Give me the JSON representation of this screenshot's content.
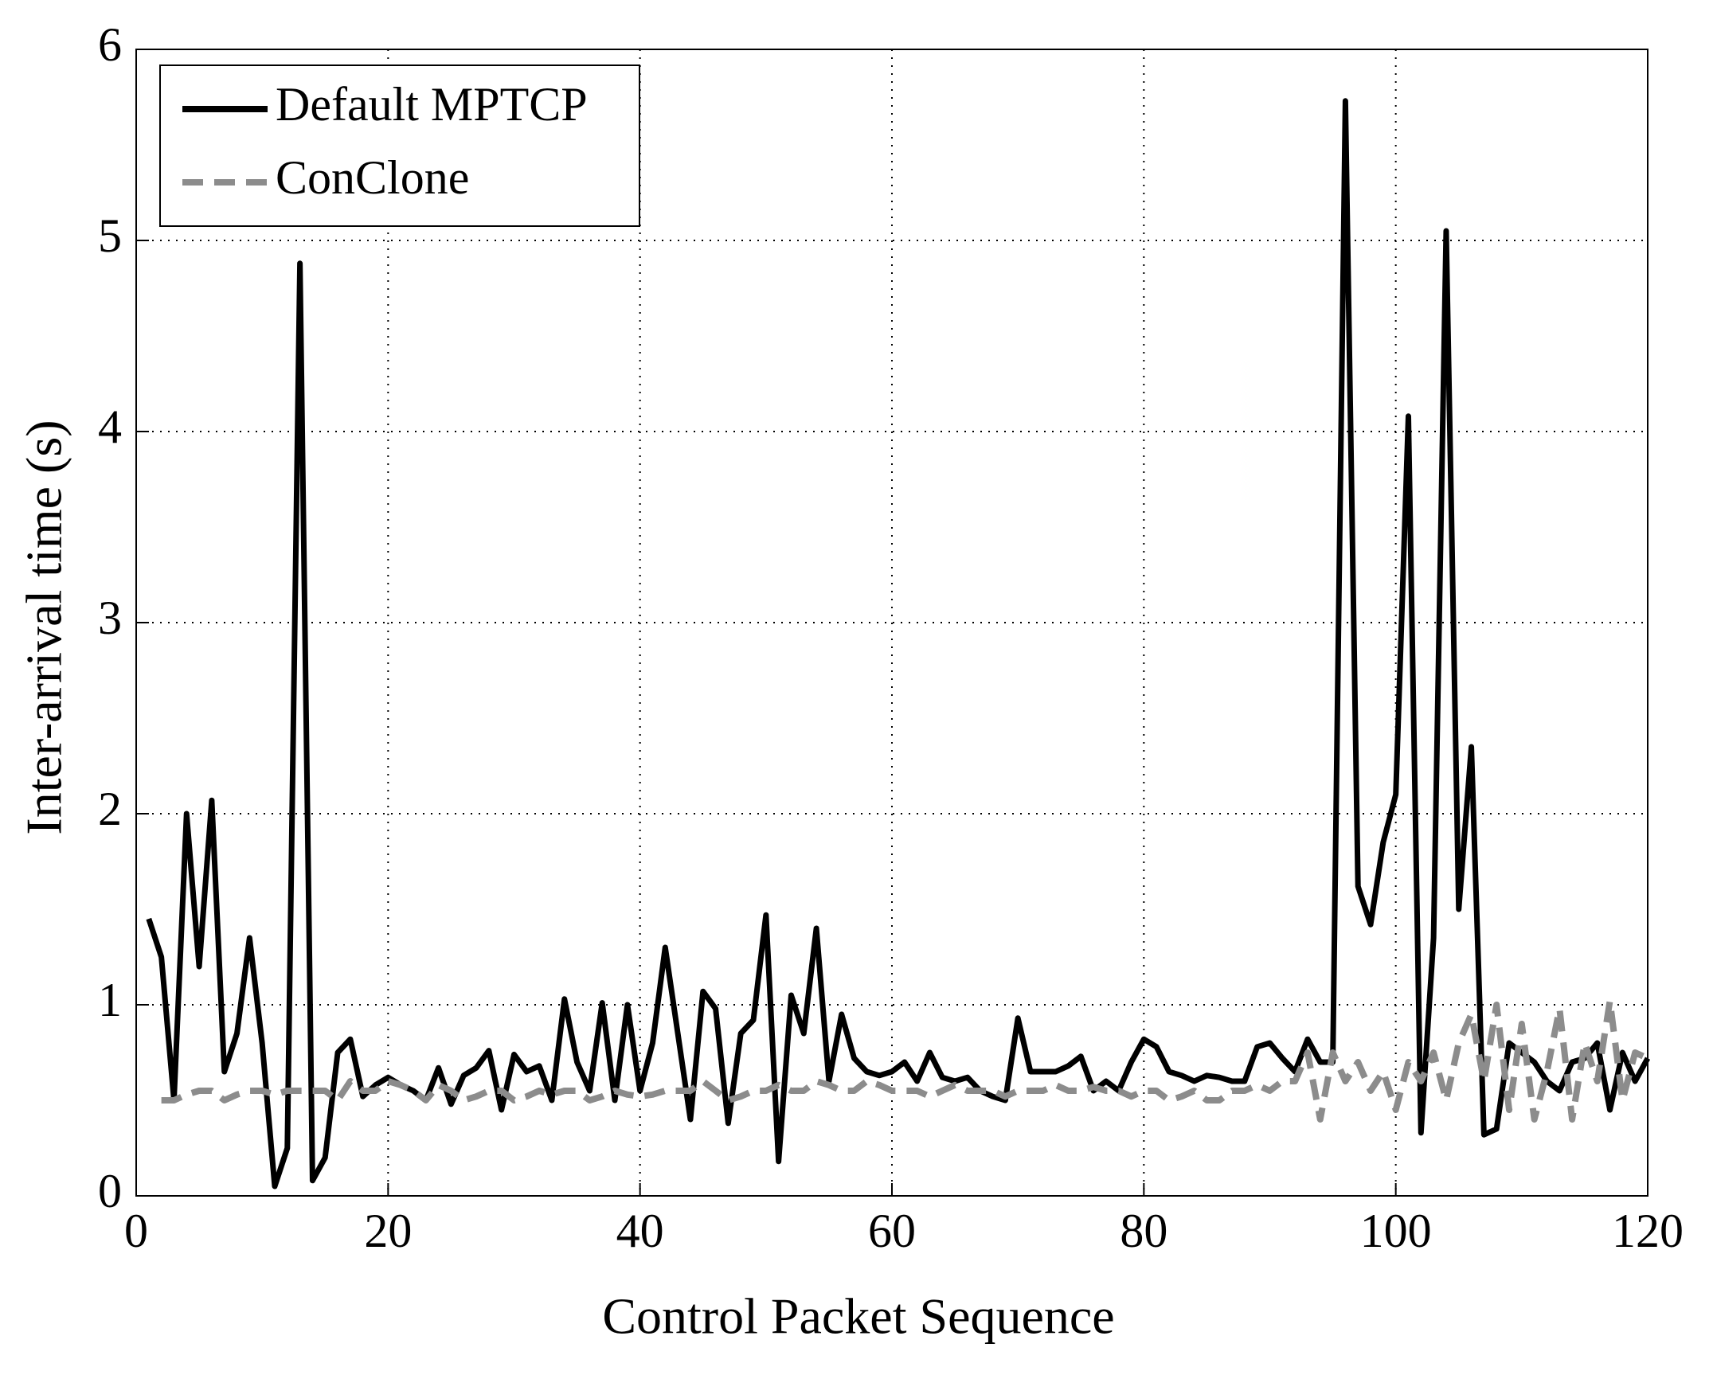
{
  "chart_data": {
    "type": "line",
    "xlabel": "Control Packet Sequence",
    "ylabel": "Inter-arrival time (s)",
    "x": [
      1,
      2,
      3,
      4,
      5,
      6,
      7,
      8,
      9,
      10,
      11,
      12,
      13,
      14,
      15,
      16,
      17,
      18,
      19,
      20,
      21,
      22,
      23,
      24,
      25,
      26,
      27,
      28,
      29,
      30,
      31,
      32,
      33,
      34,
      35,
      36,
      37,
      38,
      39,
      40,
      41,
      42,
      43,
      44,
      45,
      46,
      47,
      48,
      49,
      50,
      51,
      52,
      53,
      54,
      55,
      56,
      57,
      58,
      59,
      60,
      61,
      62,
      63,
      64,
      65,
      66,
      67,
      68,
      69,
      70,
      71,
      72,
      73,
      74,
      75,
      76,
      77,
      78,
      79,
      80,
      81,
      82,
      83,
      84,
      85,
      86,
      87,
      88,
      89,
      90,
      91,
      92,
      93,
      94,
      95,
      96,
      97,
      98,
      99,
      100,
      101,
      102,
      103,
      104,
      105,
      106,
      107,
      108,
      109,
      110,
      111,
      112,
      113,
      114,
      115,
      116,
      117,
      118,
      119,
      120
    ],
    "series": [
      {
        "name": "Default MPTCP",
        "color": "#000000",
        "dash": false,
        "values": [
          1.45,
          1.25,
          0.5,
          2.0,
          1.2,
          2.07,
          0.65,
          0.85,
          1.35,
          0.8,
          0.05,
          0.25,
          4.88,
          0.08,
          0.2,
          0.75,
          0.82,
          0.52,
          0.58,
          0.62,
          0.58,
          0.55,
          0.5,
          0.67,
          0.48,
          0.63,
          0.67,
          0.76,
          0.45,
          0.74,
          0.65,
          0.68,
          0.5,
          1.03,
          0.7,
          0.55,
          1.01,
          0.5,
          1.0,
          0.55,
          0.8,
          1.3,
          0.85,
          0.4,
          1.07,
          0.98,
          0.38,
          0.85,
          0.92,
          1.47,
          0.18,
          1.05,
          0.85,
          1.4,
          0.6,
          0.95,
          0.72,
          0.65,
          0.63,
          0.65,
          0.7,
          0.6,
          0.75,
          0.62,
          0.6,
          0.62,
          0.55,
          0.52,
          0.5,
          0.93,
          0.65,
          0.65,
          0.65,
          0.68,
          0.73,
          0.55,
          0.6,
          0.55,
          0.7,
          0.82,
          0.78,
          0.65,
          0.63,
          0.6,
          0.63,
          0.62,
          0.6,
          0.6,
          0.78,
          0.8,
          0.72,
          0.65,
          0.82,
          0.7,
          0.7,
          5.73,
          1.62,
          1.42,
          1.85,
          2.1,
          4.08,
          0.33,
          1.35,
          5.05,
          1.5,
          2.35,
          0.32,
          0.35,
          0.8,
          0.75,
          0.7,
          0.6,
          0.55,
          0.7,
          0.72,
          0.8,
          0.45,
          0.75,
          0.6,
          0.72
        ]
      },
      {
        "name": "ConClone",
        "color": "#8c8c8c",
        "dash": true,
        "values": [
          null,
          0.5,
          0.5,
          0.53,
          0.55,
          0.55,
          0.5,
          0.53,
          0.55,
          0.55,
          0.53,
          0.55,
          0.55,
          0.55,
          0.55,
          0.5,
          0.6,
          0.55,
          0.55,
          0.6,
          0.58,
          0.55,
          0.5,
          0.58,
          0.55,
          0.5,
          0.52,
          0.55,
          0.55,
          0.5,
          0.52,
          0.55,
          0.53,
          0.55,
          0.55,
          0.5,
          0.52,
          0.55,
          0.53,
          0.52,
          0.53,
          0.55,
          0.55,
          0.55,
          0.6,
          0.55,
          0.5,
          0.52,
          0.55,
          0.55,
          0.58,
          0.55,
          0.55,
          0.6,
          0.58,
          0.55,
          0.55,
          0.6,
          0.58,
          0.55,
          0.55,
          0.55,
          0.52,
          0.55,
          0.58,
          0.55,
          0.55,
          0.55,
          0.52,
          0.55,
          0.55,
          0.55,
          0.58,
          0.55,
          0.55,
          0.57,
          0.55,
          0.55,
          0.52,
          0.55,
          0.55,
          0.5,
          0.52,
          0.55,
          0.5,
          0.5,
          0.55,
          0.55,
          0.58,
          0.55,
          0.6,
          0.6,
          0.75,
          0.4,
          0.75,
          0.6,
          0.7,
          0.55,
          0.65,
          0.45,
          0.7,
          0.6,
          0.75,
          0.5,
          0.8,
          0.95,
          0.6,
          1.0,
          0.45,
          0.9,
          0.4,
          0.65,
          0.98,
          0.4,
          0.8,
          0.6,
          1.02,
          0.5,
          0.75,
          0.72
        ]
      }
    ],
    "xlim": [
      0,
      120
    ],
    "xticks": [
      0,
      20,
      40,
      60,
      80,
      100,
      120
    ],
    "ylim": [
      0,
      6
    ],
    "yticks": [
      0,
      1,
      2,
      3,
      4,
      5,
      6
    ],
    "grid": true,
    "legend": "upper left"
  }
}
